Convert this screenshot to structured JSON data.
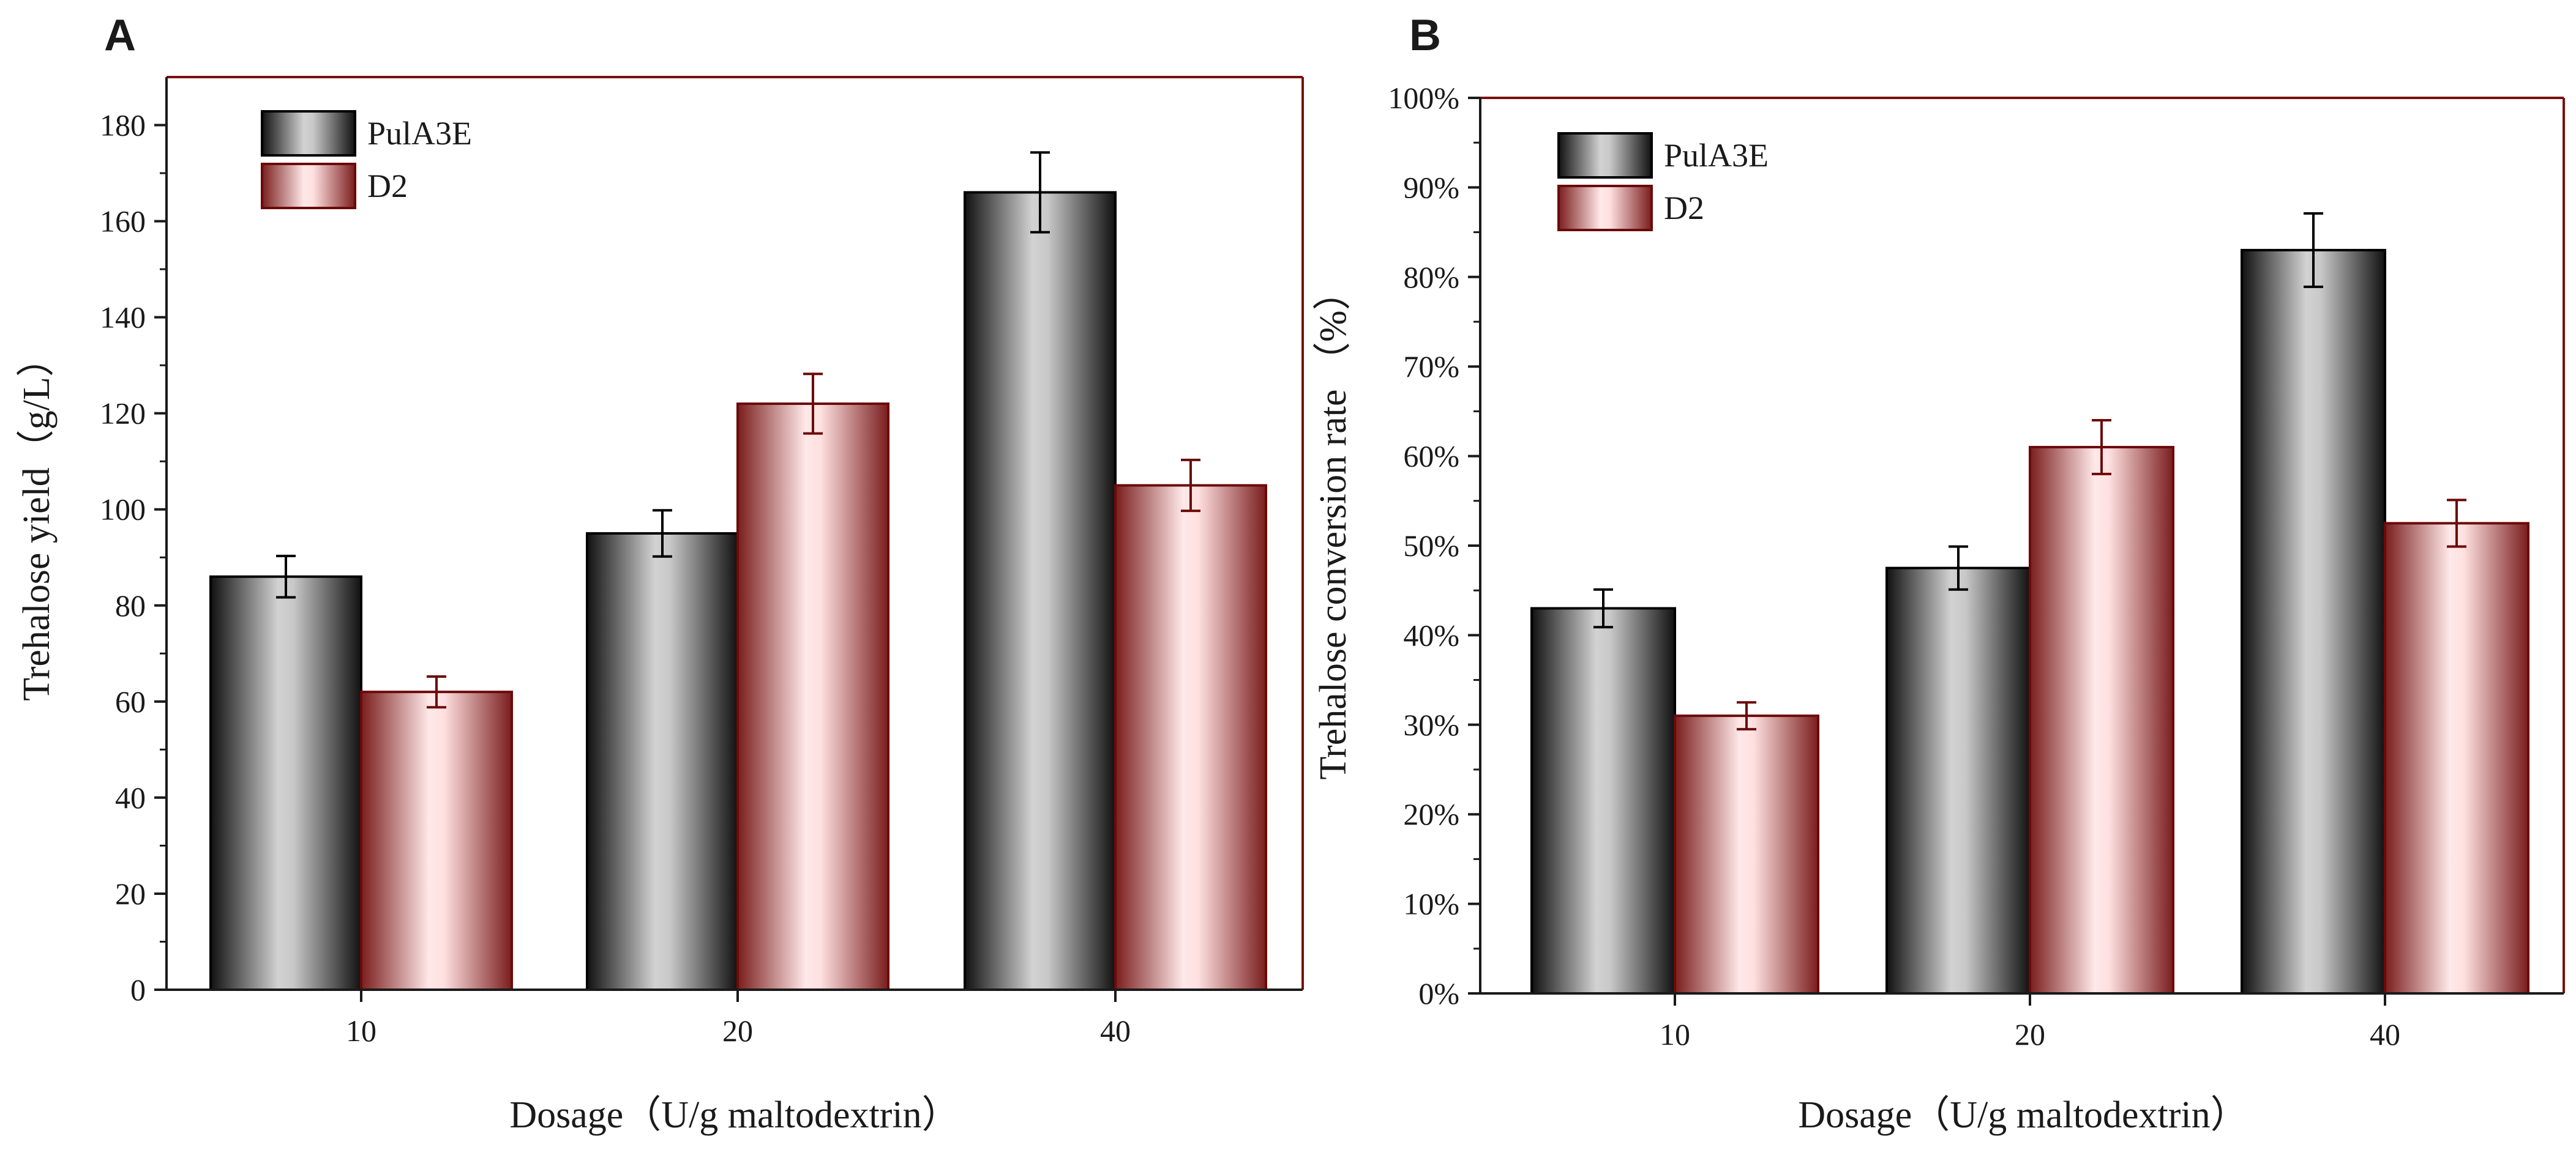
{
  "chart_data": [
    {
      "panel": "A",
      "type": "bar",
      "categories": [
        "10",
        "20",
        "40"
      ],
      "series": [
        {
          "name": "PulA3E",
          "values": [
            86,
            95,
            166
          ],
          "errors": [
            4.3,
            4.8,
            8.3
          ]
        },
        {
          "name": "D2",
          "values": [
            62,
            122,
            105
          ],
          "errors": [
            3.2,
            6.2,
            5.3
          ]
        }
      ],
      "ylim": [
        0,
        190
      ],
      "yticks": [
        0,
        20,
        40,
        60,
        80,
        100,
        120,
        140,
        160,
        180
      ],
      "ytick_labels": [
        "0",
        "20",
        "40",
        "60",
        "80",
        "100",
        "120",
        "140",
        "160",
        "180"
      ],
      "xlabel": "Dosage（U/g maltodextrin）",
      "ylabel": "Trehalose yield（g/L）",
      "legend": "top-left"
    },
    {
      "panel": "B",
      "type": "bar",
      "categories": [
        "10",
        "20",
        "40"
      ],
      "series": [
        {
          "name": "PulA3E",
          "values": [
            43,
            47.5,
            83
          ],
          "errors": [
            2.1,
            2.4,
            4.1
          ]
        },
        {
          "name": "D2",
          "values": [
            31,
            61,
            52.5
          ],
          "errors": [
            1.5,
            3.0,
            2.6
          ]
        }
      ],
      "ylim": [
        0,
        100
      ],
      "yticks": [
        0,
        10,
        20,
        30,
        40,
        50,
        60,
        70,
        80,
        90,
        100
      ],
      "ytick_labels": [
        "0%",
        "10%",
        "20%",
        "30%",
        "40%",
        "50%",
        "60%",
        "70%",
        "80%",
        "90%",
        "100%"
      ],
      "xlabel": "Dosage（U/g maltodextrin）",
      "ylabel": "Trehalose conversion rate （%）",
      "legend": "top-left"
    }
  ],
  "colors": {
    "pul_edge": "#000000",
    "pul_dark": "#141414",
    "pul_light": "#d0d0d0",
    "d2_edge": "#6b0a0a",
    "d2_dark": "#8a2a2a",
    "d2_light": "#ffe6e6",
    "axis": "#1a1a1a",
    "frame": "#7a1010"
  }
}
